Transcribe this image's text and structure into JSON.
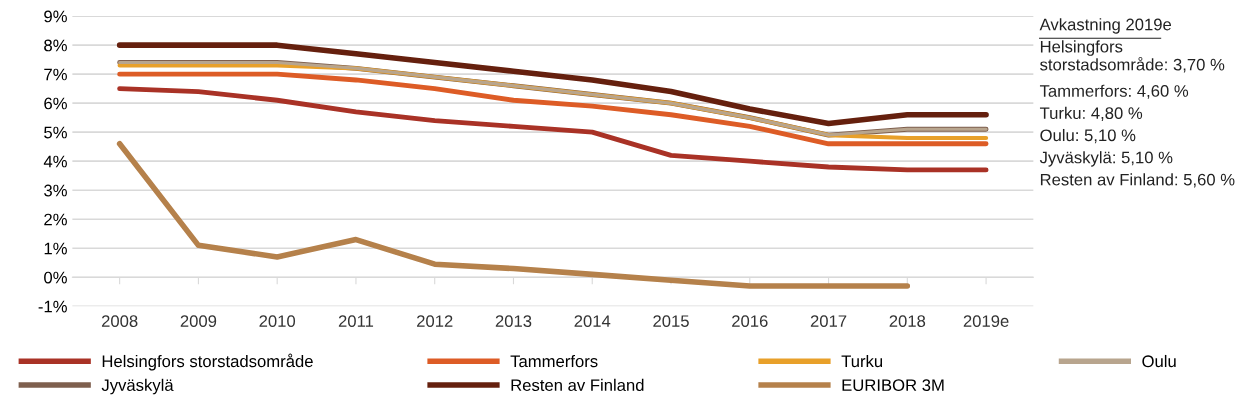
{
  "chart_data": {
    "type": "line",
    "categories": [
      "2008",
      "2009",
      "2010",
      "2011",
      "2012",
      "2013",
      "2014",
      "2015",
      "2016",
      "2017",
      "2018",
      "2019e"
    ],
    "series": [
      {
        "name": "Helsingfors storstadsområde",
        "color": "#a93226",
        "values": [
          6.5,
          6.4,
          6.1,
          5.7,
          5.4,
          5.2,
          5.0,
          4.2,
          4.0,
          3.8,
          3.7,
          3.7
        ]
      },
      {
        "name": "Tammerfors",
        "color": "#dd5c26",
        "values": [
          7.0,
          7.0,
          7.0,
          6.8,
          6.5,
          6.1,
          5.9,
          5.6,
          5.2,
          4.6,
          4.6,
          4.6
        ]
      },
      {
        "name": "Turku",
        "color": "#e8a02a",
        "values": [
          7.3,
          7.3,
          7.3,
          7.2,
          6.9,
          6.6,
          6.3,
          6.0,
          5.5,
          4.9,
          4.8,
          4.8
        ]
      },
      {
        "name": "Oulu",
        "color": "#b8a58e",
        "values": [
          7.4,
          7.4,
          7.4,
          7.2,
          6.9,
          6.6,
          6.3,
          6.0,
          5.5,
          4.9,
          5.1,
          5.1
        ]
      },
      {
        "name": "Jyväskylä",
        "color": "#7e5f4e",
        "values": [
          7.4,
          7.4,
          7.4,
          7.2,
          6.9,
          6.6,
          6.3,
          6.0,
          5.5,
          4.9,
          5.1,
          5.1
        ]
      },
      {
        "name": "Resten av Finland",
        "color": "#65200e",
        "values": [
          8.0,
          8.0,
          8.0,
          7.7,
          7.4,
          7.1,
          6.8,
          6.4,
          5.8,
          5.3,
          5.6,
          5.6
        ]
      },
      {
        "name": "EURIBOR 3M",
        "color": "#b5814b",
        "values": [
          4.6,
          1.1,
          0.7,
          1.3,
          0.45,
          0.3,
          0.1,
          -0.1,
          -0.3,
          -0.3,
          -0.3,
          null
        ]
      }
    ],
    "ylim": [
      -1,
      9
    ],
    "yticks": [
      {
        "value": -1,
        "label": "-1%"
      },
      {
        "value": 0,
        "label": "0%"
      },
      {
        "value": 1,
        "label": "1%"
      },
      {
        "value": 2,
        "label": "2%"
      },
      {
        "value": 3,
        "label": "3%"
      },
      {
        "value": 4,
        "label": "4%"
      },
      {
        "value": 5,
        "label": "5%"
      },
      {
        "value": 6,
        "label": "6%"
      },
      {
        "value": 7,
        "label": "7%"
      },
      {
        "value": 8,
        "label": "8%"
      },
      {
        "value": 9,
        "label": "9%"
      }
    ],
    "grid": "y",
    "legend": "bottom",
    "marker": "none",
    "line_style": "solid",
    "annotations": [
      "Avkastning 2019e",
      "Helsingfors\nstorstadsområde: 3,70 %",
      "Tammerfors: 4,60 %",
      "Turku: 4,80 %",
      "Oulu: 5,10 %",
      "Jyväskylä: 5,10 %",
      "Resten av Finland: 5,60 %"
    ]
  }
}
